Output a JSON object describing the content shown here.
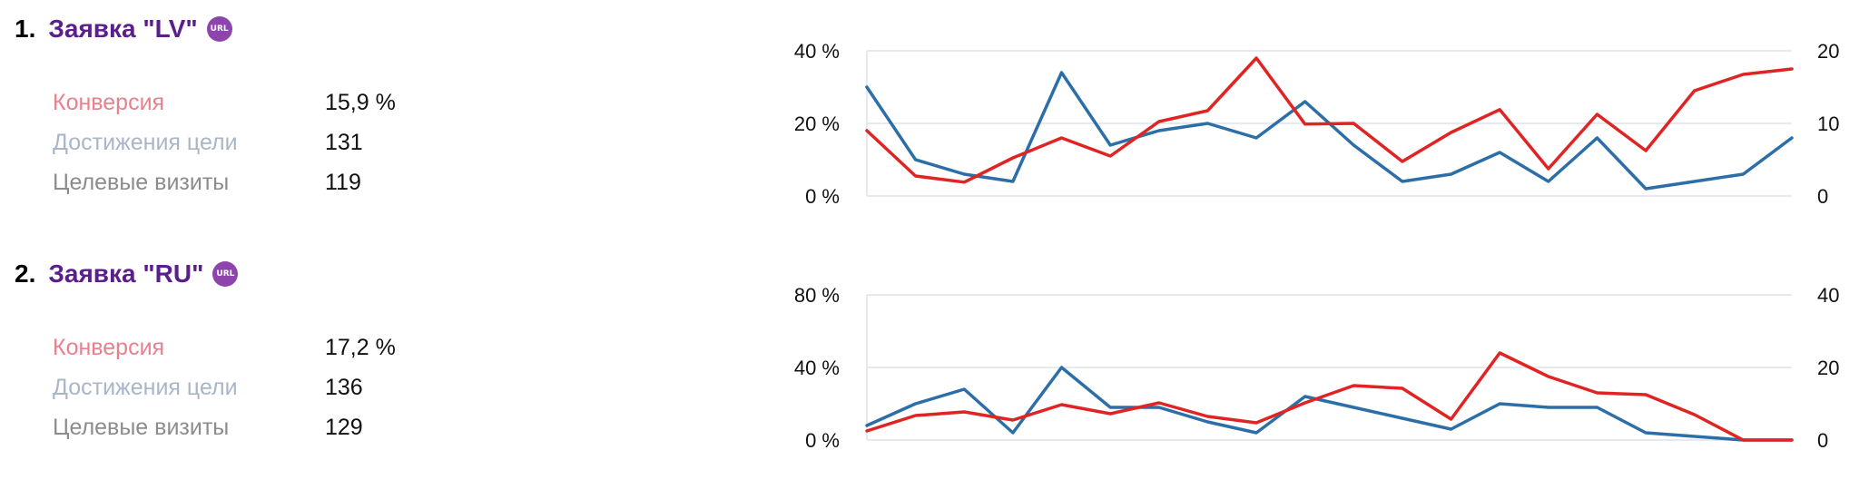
{
  "goals": [
    {
      "number": "1.",
      "name": "Заявка \"LV\"",
      "url_icon": "url-badge-icon",
      "url_icon_text": "URL",
      "metrics": [
        {
          "label": "Конверсия",
          "value": "15,9 %",
          "color": "#e8808e"
        },
        {
          "label": "Достижения цели",
          "value": "131",
          "color": "#a8b6c8"
        },
        {
          "label": "Целевые визиты",
          "value": "119",
          "color": "#8c8c8c"
        }
      ]
    },
    {
      "number": "2.",
      "name": "Заявка \"RU\"",
      "url_icon": "url-badge-icon",
      "url_icon_text": "URL",
      "metrics": [
        {
          "label": "Конверсия",
          "value": "17,2 %",
          "color": "#e8808e"
        },
        {
          "label": "Достижения цели",
          "value": "136",
          "color": "#a8b6c8"
        },
        {
          "label": "Целевые визиты",
          "value": "129",
          "color": "#8c8c8c"
        }
      ]
    }
  ],
  "chart_data": [
    {
      "type": "line",
      "title": "",
      "grid": true,
      "left_axis": {
        "ticks": [
          "40 %",
          "20 %",
          "0 %"
        ],
        "range": [
          0,
          40
        ]
      },
      "right_axis": {
        "ticks": [
          "20",
          "10",
          "0"
        ],
        "range": [
          0,
          20
        ]
      },
      "series": [
        {
          "axis": "left",
          "color": "#e02424",
          "values": [
            18,
            5.5,
            3.8,
            10.5,
            16,
            11,
            20.5,
            23.5,
            38,
            19.8,
            20,
            9.5,
            17.5,
            23.8,
            7.5,
            22.5,
            12.5,
            29,
            33.5,
            35
          ]
        },
        {
          "axis": "right",
          "color": "#2c6fa8",
          "values": [
            15,
            5,
            3,
            2,
            17,
            7,
            9,
            10,
            8,
            13,
            7,
            2,
            3,
            6,
            2,
            8,
            1,
            2,
            3,
            8
          ]
        }
      ]
    },
    {
      "type": "line",
      "title": "",
      "grid": true,
      "left_axis": {
        "ticks": [
          "80 %",
          "40 %",
          "0 %"
        ],
        "range": [
          0,
          80
        ]
      },
      "right_axis": {
        "ticks": [
          "40",
          "20",
          "0"
        ],
        "range": [
          0,
          40
        ]
      },
      "series": [
        {
          "axis": "left",
          "color": "#e02424",
          "values": [
            5,
            13.5,
            15.5,
            11,
            19.5,
            14.5,
            20.5,
            13,
            9.5,
            20.5,
            30,
            28.5,
            11.5,
            48,
            35,
            26,
            25,
            14,
            0,
            0
          ]
        },
        {
          "axis": "right",
          "color": "#2c6fa8",
          "values": [
            4,
            10,
            14,
            2,
            20,
            9,
            9,
            5,
            2,
            12,
            9,
            6,
            3,
            10,
            9,
            9,
            2,
            1,
            0,
            0
          ]
        }
      ]
    }
  ]
}
